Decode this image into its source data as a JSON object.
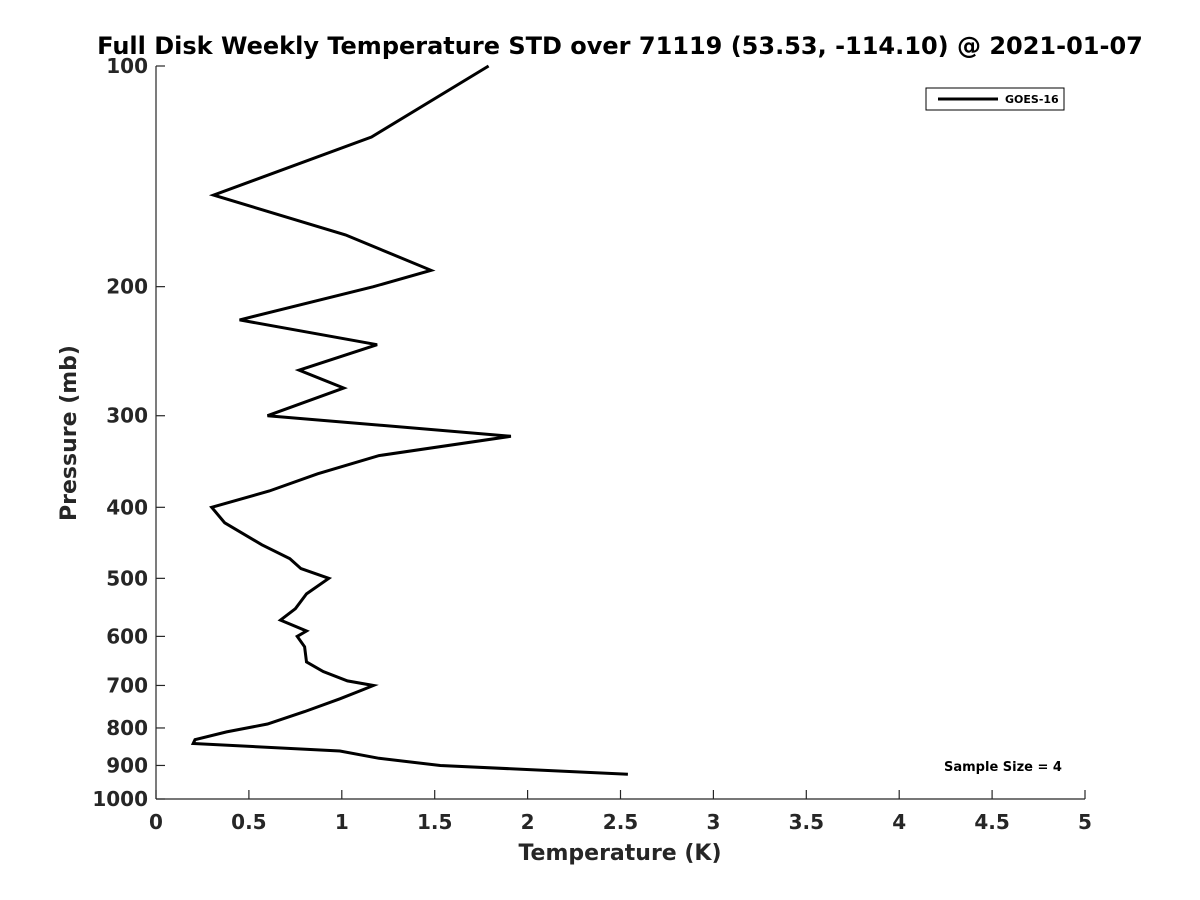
{
  "chart_data": {
    "type": "line",
    "title": "Full Disk Weekly Temperature STD over 71119 (53.53, -114.10) @ 2021-01-07",
    "xlabel": "Temperature (K)",
    "ylabel": "Pressure (mb)",
    "xlim": [
      0,
      5
    ],
    "ylim": [
      100,
      1000
    ],
    "yscale": "log",
    "y_reversed": true,
    "grid": false,
    "legend_position": "top-right",
    "xticks": [
      "0",
      "0.5",
      "1",
      "1.5",
      "2",
      "2.5",
      "3",
      "3.5",
      "4",
      "4.5",
      "5"
    ],
    "yticks": [
      "100",
      "200",
      "300",
      "400",
      "500",
      "600",
      "700",
      "800",
      "900",
      "1000"
    ],
    "annotation": "Sample Size = 4",
    "series": [
      {
        "name": "GOES-16",
        "color": "#000000",
        "points": [
          [
            1.79,
            100
          ],
          [
            1.16,
            125
          ],
          [
            0.31,
            150
          ],
          [
            1.02,
            170
          ],
          [
            1.48,
            190
          ],
          [
            1.17,
            200
          ],
          [
            0.45,
            222
          ],
          [
            1.19,
            240
          ],
          [
            0.77,
            260
          ],
          [
            1.01,
            275
          ],
          [
            0.6,
            300
          ],
          [
            1.91,
            320
          ],
          [
            1.2,
            340
          ],
          [
            0.87,
            360
          ],
          [
            0.61,
            380
          ],
          [
            0.3,
            400
          ],
          [
            0.37,
            420
          ],
          [
            0.57,
            450
          ],
          [
            0.72,
            470
          ],
          [
            0.78,
            485
          ],
          [
            0.93,
            500
          ],
          [
            0.81,
            525
          ],
          [
            0.75,
            550
          ],
          [
            0.67,
            570
          ],
          [
            0.81,
            590
          ],
          [
            0.76,
            600
          ],
          [
            0.8,
            620
          ],
          [
            0.81,
            650
          ],
          [
            0.9,
            670
          ],
          [
            1.03,
            690
          ],
          [
            1.17,
            700
          ],
          [
            1.11,
            710
          ],
          [
            0.99,
            730
          ],
          [
            0.8,
            760
          ],
          [
            0.6,
            790
          ],
          [
            0.38,
            810
          ],
          [
            0.21,
            830
          ],
          [
            0.2,
            840
          ],
          [
            0.99,
            860
          ],
          [
            1.2,
            880
          ],
          [
            1.53,
            900
          ],
          [
            2.54,
            925
          ]
        ]
      }
    ]
  }
}
